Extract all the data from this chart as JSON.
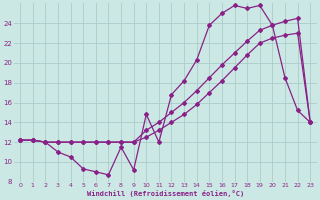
{
  "xlabel": "Windchill (Refroidissement éolien,°C)",
  "bg_color": "#cce8e4",
  "line_color": "#882288",
  "grid_color": "#aaccc8",
  "xlim": [
    -0.5,
    23.5
  ],
  "ylim": [
    8,
    26
  ],
  "yticks": [
    8,
    10,
    12,
    14,
    16,
    18,
    20,
    22,
    24
  ],
  "xticks": [
    0,
    1,
    2,
    3,
    4,
    5,
    6,
    7,
    8,
    9,
    10,
    11,
    12,
    13,
    14,
    15,
    16,
    17,
    18,
    19,
    20,
    21,
    22,
    23
  ],
  "line1_x": [
    0,
    1,
    2,
    3,
    4,
    5,
    6,
    7,
    8,
    9,
    10,
    11,
    12,
    13,
    14,
    15,
    16,
    17,
    18,
    19,
    20,
    21,
    22,
    23
  ],
  "line1_y": [
    12.2,
    12.2,
    12.0,
    11.0,
    10.5,
    9.3,
    9.0,
    8.7,
    11.5,
    9.2,
    14.8,
    12.0,
    16.8,
    18.2,
    20.3,
    23.8,
    25.0,
    25.8,
    25.5,
    25.8,
    23.8,
    18.5,
    15.2,
    14.0
  ],
  "line2_x": [
    0,
    1,
    2,
    3,
    4,
    5,
    6,
    7,
    8,
    9,
    10,
    11,
    12,
    13,
    14,
    15,
    16,
    17,
    18,
    19,
    20,
    21,
    22,
    23
  ],
  "line2_y": [
    12.2,
    12.2,
    12.0,
    12.0,
    12.0,
    12.0,
    12.0,
    12.0,
    12.0,
    12.0,
    13.2,
    14.0,
    15.0,
    16.0,
    17.2,
    18.5,
    19.8,
    21.0,
    22.2,
    23.3,
    23.8,
    24.2,
    24.5,
    14.0
  ],
  "line3_x": [
    0,
    1,
    2,
    3,
    4,
    5,
    6,
    7,
    8,
    9,
    10,
    11,
    12,
    13,
    14,
    15,
    16,
    17,
    18,
    19,
    20,
    21,
    22,
    23
  ],
  "line3_y": [
    12.2,
    12.2,
    12.0,
    12.0,
    12.0,
    12.0,
    12.0,
    12.0,
    12.0,
    12.0,
    12.5,
    13.2,
    14.0,
    14.8,
    15.8,
    17.0,
    18.2,
    19.5,
    20.8,
    22.0,
    22.5,
    22.8,
    23.0,
    14.0
  ]
}
